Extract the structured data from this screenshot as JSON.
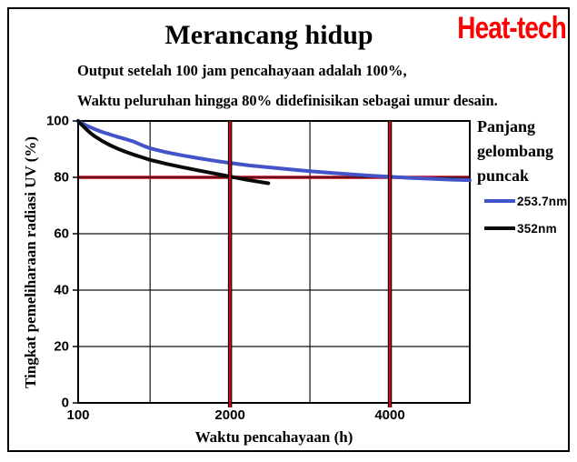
{
  "header": {
    "brand": "Heat-tech",
    "subtitle_line1": "Output setelah 100 jam pencahayaan adalah 100%,",
    "subtitle_line2": "Waktu peluruhan hingga 80% didefinisikan sebagai umur desain."
  },
  "colors": {
    "brand_red": "#FF0000",
    "guide_red": "#C00C1C",
    "series_blue": "#4353C8",
    "series_black": "#0A0A0A",
    "grid_black": "#111111"
  },
  "chart_data": {
    "type": "line",
    "title": "Merancang hidup",
    "xlabel": "Waktu pencahayaan (h)",
    "ylabel": "Tingkat pemeliharaan radiasi UV (%)",
    "xlim": [
      100,
      5000
    ],
    "ylim": [
      0,
      100
    ],
    "x_ticks": [
      {
        "value": 100,
        "label": "100"
      },
      {
        "value": 2000,
        "label": "2000"
      },
      {
        "value": 4000,
        "label": "4000"
      }
    ],
    "y_ticks": [
      {
        "value": 100,
        "label": "100"
      },
      {
        "value": 80,
        "label": "80"
      },
      {
        "value": 60,
        "label": "60"
      },
      {
        "value": 40,
        "label": "40"
      },
      {
        "value": 20,
        "label": "20"
      },
      {
        "value": 0,
        "label": "0"
      }
    ],
    "x_gridlines": [
      1000,
      2000,
      3000,
      4000
    ],
    "y_gridlines": [
      20,
      40,
      60,
      80
    ],
    "grid": true,
    "guides": {
      "horizontal": [
        80
      ],
      "vertical": [
        2000,
        4000
      ],
      "color": "#C00C1C",
      "meaning": "Umur desain: waktu peluruhan hingga 80%"
    },
    "legend": {
      "title": "Panjang gelombang puncak",
      "position": "right"
    },
    "series": [
      {
        "name": "253.7nm",
        "color": "#4353C8",
        "points": [
          [
            100,
            100
          ],
          [
            200,
            98.4
          ],
          [
            300,
            97.2
          ],
          [
            400,
            96.1
          ],
          [
            500,
            95.2
          ],
          [
            600,
            94.3
          ],
          [
            700,
            93.5
          ],
          [
            800,
            92.6
          ],
          [
            900,
            91.4
          ],
          [
            1000,
            90.3
          ],
          [
            1200,
            88.9
          ],
          [
            1400,
            87.8
          ],
          [
            1600,
            86.8
          ],
          [
            1800,
            85.9
          ],
          [
            2000,
            85.1
          ],
          [
            2250,
            84.2
          ],
          [
            2500,
            83.5
          ],
          [
            2750,
            82.8
          ],
          [
            3000,
            82.2
          ],
          [
            3250,
            81.6
          ],
          [
            3500,
            81.1
          ],
          [
            3750,
            80.6
          ],
          [
            4000,
            80.2
          ],
          [
            4250,
            79.8
          ],
          [
            4500,
            79.5
          ],
          [
            4750,
            79.2
          ],
          [
            5000,
            79.0
          ]
        ]
      },
      {
        "name": "352nm",
        "color": "#0A0A0A",
        "points": [
          [
            100,
            100
          ],
          [
            150,
            98.5
          ],
          [
            200,
            97.1
          ],
          [
            250,
            95.8
          ],
          [
            300,
            94.7
          ],
          [
            400,
            92.9
          ],
          [
            500,
            91.4
          ],
          [
            600,
            90.1
          ],
          [
            700,
            89.0
          ],
          [
            800,
            88.0
          ],
          [
            900,
            87.1
          ],
          [
            1000,
            86.2
          ],
          [
            1200,
            84.8
          ],
          [
            1400,
            83.6
          ],
          [
            1600,
            82.5
          ],
          [
            1800,
            81.4
          ],
          [
            2000,
            80.3
          ],
          [
            2200,
            79.2
          ],
          [
            2350,
            78.5
          ],
          [
            2480,
            77.9
          ]
        ]
      }
    ]
  }
}
